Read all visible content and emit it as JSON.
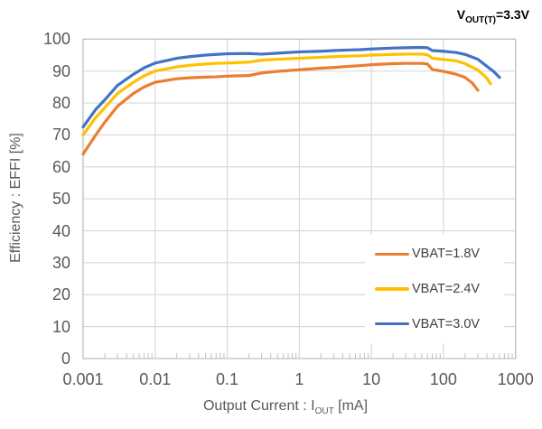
{
  "annotation": {
    "pre": "V",
    "sub": "OUT(T)",
    "post": "=3.3V"
  },
  "xaxis_title": {
    "pre": "Output Current : I",
    "sub": "OUT",
    "post": " [mA]"
  },
  "yaxis_title": "Efficiency : EFFI [%]",
  "chart_data": {
    "type": "line",
    "annotation": "V_OUT(T)=3.3V",
    "xlabel": "Output Current : I_OUT [mA]",
    "ylabel": "Efficiency : EFFI [%]",
    "x_scale": "log",
    "xlim": [
      0.001,
      1000
    ],
    "ylim": [
      0,
      100
    ],
    "x_tick_values": [
      0.001,
      0.01,
      0.1,
      1,
      10,
      100,
      1000
    ],
    "x_tick_labels": [
      "0.001",
      "0.01",
      "0.1",
      "1",
      "10",
      "100",
      "1000"
    ],
    "y_tick_values": [
      0,
      10,
      20,
      30,
      40,
      50,
      60,
      70,
      80,
      90,
      100
    ],
    "y_tick_labels": [
      "0",
      "10",
      "20",
      "30",
      "40",
      "50",
      "60",
      "70",
      "80",
      "90",
      "100"
    ],
    "grid": true,
    "legend_position": "inside bottom-right",
    "colors": {
      "grid": "#d9d9d9",
      "axis_border": "#bfbfbf",
      "minor_tick": "#bfbfbf",
      "tick_text": "#595959",
      "legend_text": "#404040"
    },
    "series": [
      {
        "name": "VBAT=1.8V",
        "color": "#ED7D31",
        "points": [
          [
            0.001,
            64
          ],
          [
            0.0015,
            70
          ],
          [
            0.002,
            74
          ],
          [
            0.003,
            79
          ],
          [
            0.005,
            83
          ],
          [
            0.007,
            85
          ],
          [
            0.01,
            86.5
          ],
          [
            0.02,
            87.6
          ],
          [
            0.03,
            87.9
          ],
          [
            0.05,
            88.1
          ],
          [
            0.07,
            88.2
          ],
          [
            0.1,
            88.4
          ],
          [
            0.2,
            88.6
          ],
          [
            0.3,
            89.4
          ],
          [
            0.5,
            89.9
          ],
          [
            1,
            90.4
          ],
          [
            2,
            90.9
          ],
          [
            3,
            91.1
          ],
          [
            5,
            91.5
          ],
          [
            7,
            91.7
          ],
          [
            10,
            92
          ],
          [
            20,
            92.3
          ],
          [
            30,
            92.4
          ],
          [
            50,
            92.4
          ],
          [
            60,
            92.2
          ],
          [
            70,
            90.5
          ],
          [
            100,
            89.9
          ],
          [
            150,
            89
          ],
          [
            200,
            88
          ],
          [
            250,
            86.3
          ],
          [
            300,
            84
          ]
        ]
      },
      {
        "name": "VBAT=2.4V",
        "color": "#FFC000",
        "points": [
          [
            0.001,
            70
          ],
          [
            0.0015,
            75.5
          ],
          [
            0.002,
            78.5
          ],
          [
            0.003,
            83
          ],
          [
            0.005,
            86.5
          ],
          [
            0.007,
            88.5
          ],
          [
            0.01,
            90
          ],
          [
            0.02,
            91.3
          ],
          [
            0.03,
            91.8
          ],
          [
            0.05,
            92.2
          ],
          [
            0.07,
            92.4
          ],
          [
            0.1,
            92.5
          ],
          [
            0.2,
            92.8
          ],
          [
            0.3,
            93.4
          ],
          [
            0.5,
            93.7
          ],
          [
            1,
            94
          ],
          [
            2,
            94.3
          ],
          [
            3,
            94.5
          ],
          [
            5,
            94.7
          ],
          [
            7,
            94.8
          ],
          [
            10,
            95
          ],
          [
            20,
            95.2
          ],
          [
            30,
            95.3
          ],
          [
            50,
            95.3
          ],
          [
            60,
            95.1
          ],
          [
            70,
            94
          ],
          [
            100,
            93.6
          ],
          [
            150,
            93.2
          ],
          [
            200,
            92.3
          ],
          [
            300,
            90.3
          ],
          [
            400,
            87.8
          ],
          [
            450,
            86
          ]
        ]
      },
      {
        "name": "VBAT=3.0V",
        "color": "#4472C4",
        "points": [
          [
            0.001,
            72.5
          ],
          [
            0.0015,
            78
          ],
          [
            0.002,
            81
          ],
          [
            0.003,
            85.5
          ],
          [
            0.005,
            89
          ],
          [
            0.007,
            91
          ],
          [
            0.01,
            92.5
          ],
          [
            0.02,
            94
          ],
          [
            0.03,
            94.5
          ],
          [
            0.05,
            95
          ],
          [
            0.07,
            95.2
          ],
          [
            0.1,
            95.4
          ],
          [
            0.2,
            95.5
          ],
          [
            0.3,
            95.3
          ],
          [
            0.5,
            95.6
          ],
          [
            1,
            96
          ],
          [
            2,
            96.2
          ],
          [
            3,
            96.4
          ],
          [
            5,
            96.6
          ],
          [
            7,
            96.7
          ],
          [
            10,
            96.9
          ],
          [
            20,
            97.2
          ],
          [
            30,
            97.3
          ],
          [
            50,
            97.4
          ],
          [
            60,
            97.3
          ],
          [
            70,
            96.4
          ],
          [
            100,
            96.2
          ],
          [
            150,
            95.8
          ],
          [
            200,
            95.2
          ],
          [
            300,
            93.7
          ],
          [
            400,
            91.5
          ],
          [
            500,
            89.8
          ],
          [
            600,
            88
          ]
        ]
      }
    ]
  }
}
